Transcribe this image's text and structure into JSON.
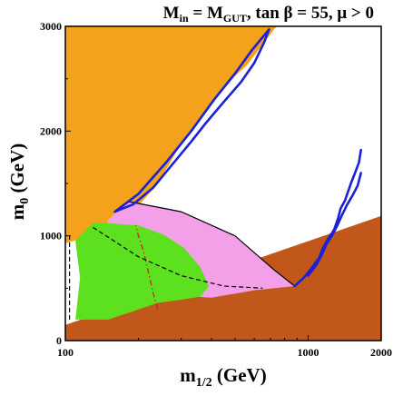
{
  "chart_data": {
    "type": "area",
    "title": {
      "lhs_main": "M",
      "lhs_sub": "in",
      "mid_main": " = M",
      "mid_sub": "GUT",
      "rest": ", tan β = 55,  μ > 0"
    },
    "xlabel": {
      "main": "m",
      "sub": "1/2",
      "unit": " (GeV)"
    },
    "ylabel": {
      "main": "m",
      "sub": "0",
      "unit": " (GeV)"
    },
    "xlim": [
      100,
      2000
    ],
    "ylim": [
      0,
      3000
    ],
    "x_ticks": [
      {
        "value": 100,
        "label": "100"
      },
      {
        "value": 1000,
        "label": "1000"
      },
      {
        "value": 2000,
        "label": "2000"
      }
    ],
    "y_ticks": [
      {
        "value": 0,
        "label": "0"
      },
      {
        "value": 1000,
        "label": "1000"
      },
      {
        "value": 2000,
        "label": "2000"
      },
      {
        "value": 3000,
        "label": "3000"
      }
    ],
    "grid": false,
    "legend": "none",
    "regions": [
      {
        "id": "stau-lsp",
        "color": "#c1571a",
        "points": [
          [
            100,
            150
          ],
          [
            2000,
            1190
          ],
          [
            2000,
            0
          ],
          [
            100,
            0
          ]
        ]
      },
      {
        "id": "ewsb-excluded",
        "color": "#f4a21c",
        "points": [
          [
            100,
            930
          ],
          [
            100,
            3000
          ],
          [
            740,
            3000
          ],
          [
            560,
            2630
          ],
          [
            450,
            2430
          ],
          [
            370,
            2150
          ],
          [
            300,
            1880
          ],
          [
            240,
            1500
          ],
          [
            180,
            1160
          ],
          [
            120,
            980
          ]
        ]
      },
      {
        "id": "g-2-favoured",
        "color": "#f4a0e8",
        "points": [
          [
            180,
            1330
          ],
          [
            300,
            1230
          ],
          [
            500,
            1000
          ],
          [
            720,
            680
          ],
          [
            880,
            520
          ],
          [
            600,
            480
          ],
          [
            400,
            410
          ],
          [
            250,
            440
          ],
          [
            170,
            600
          ],
          [
            140,
            900
          ],
          [
            150,
            1150
          ]
        ]
      },
      {
        "id": "b-sgamma-excluded",
        "color": "#5de01e",
        "points": [
          [
            110,
            200
          ],
          [
            115,
            600
          ],
          [
            110,
            950
          ],
          [
            130,
            1130
          ],
          [
            200,
            1100
          ],
          [
            255,
            1010
          ],
          [
            310,
            880
          ],
          [
            360,
            700
          ],
          [
            390,
            520
          ],
          [
            360,
            420
          ],
          [
            300,
            390
          ],
          [
            240,
            360
          ],
          [
            190,
            280
          ],
          [
            150,
            200
          ]
        ]
      }
    ],
    "lines": [
      {
        "id": "g-2-boundary",
        "color": "#000000",
        "style": "solid",
        "points": [
          [
            180,
            1330
          ],
          [
            300,
            1230
          ],
          [
            500,
            1000
          ],
          [
            720,
            680
          ],
          [
            880,
            520
          ]
        ]
      },
      {
        "id": "chargino-limit",
        "color": "#000000",
        "style": "dashed",
        "points": [
          [
            104,
            200
          ],
          [
            104,
            1000
          ]
        ]
      },
      {
        "id": "higgs-114",
        "color": "#cc1b1b",
        "style": "dash-dot",
        "points": [
          [
            240,
            300
          ],
          [
            230,
            450
          ],
          [
            220,
            650
          ],
          [
            210,
            850
          ],
          [
            200,
            1000
          ],
          [
            195,
            1100
          ]
        ]
      },
      {
        "id": "higgs-contour",
        "color": "#000000",
        "style": "dashed",
        "points": [
          [
            130,
            1080
          ],
          [
            200,
            800
          ],
          [
            300,
            620
          ],
          [
            450,
            520
          ],
          [
            650,
            500
          ]
        ]
      }
    ],
    "relic_bands": [
      {
        "id": "funnel-lower-branch",
        "color": "#1a22d6",
        "points": [
          [
            160,
            1230
          ],
          [
            200,
            1400
          ],
          [
            260,
            1700
          ],
          [
            330,
            2000
          ],
          [
            410,
            2300
          ],
          [
            500,
            2550
          ],
          [
            590,
            2780
          ],
          [
            690,
            2970
          ]
        ]
      },
      {
        "id": "funnel-mid-branch",
        "color": "#1a22d6",
        "points": [
          [
            690,
            2970
          ],
          [
            660,
            2850
          ],
          [
            600,
            2650
          ],
          [
            530,
            2470
          ],
          [
            450,
            2280
          ],
          [
            380,
            2080
          ],
          [
            330,
            1900
          ],
          [
            280,
            1700
          ],
          [
            230,
            1460
          ],
          [
            190,
            1300
          ],
          [
            160,
            1230
          ]
        ]
      },
      {
        "id": "coannihilation-strip",
        "color": "#1a22d6",
        "points": [
          [
            880,
            520
          ],
          [
            960,
            600
          ],
          [
            1040,
            700
          ],
          [
            1110,
            790
          ],
          [
            1150,
            880
          ],
          [
            1200,
            960
          ],
          [
            1280,
            1060
          ],
          [
            1330,
            1170
          ],
          [
            1360,
            1260
          ],
          [
            1420,
            1340
          ],
          [
            1500,
            1500
          ],
          [
            1560,
            1600
          ],
          [
            1620,
            1700
          ],
          [
            1650,
            1820
          ]
        ]
      },
      {
        "id": "coannihilation-strip-inner",
        "color": "#1a22d6",
        "points": [
          [
            1000,
            620
          ],
          [
            1080,
            720
          ],
          [
            1140,
            820
          ],
          [
            1190,
            920
          ],
          [
            1260,
            1010
          ],
          [
            1320,
            1100
          ],
          [
            1380,
            1200
          ],
          [
            1450,
            1300
          ],
          [
            1520,
            1380
          ],
          [
            1600,
            1480
          ],
          [
            1650,
            1600
          ]
        ]
      }
    ]
  }
}
